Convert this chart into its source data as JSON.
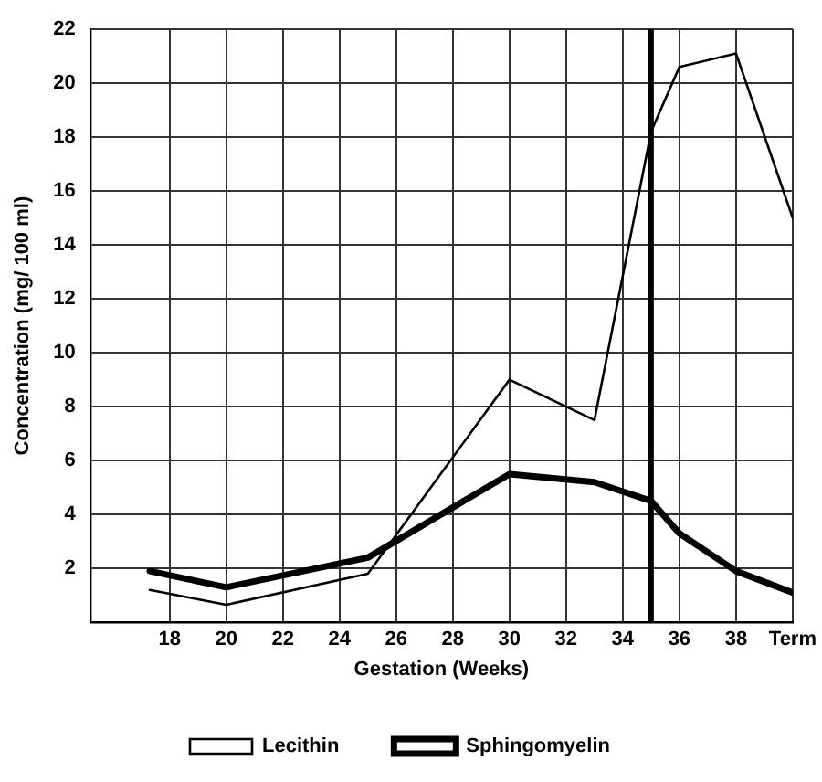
{
  "chart_data": {
    "type": "line",
    "xlabel": "Gestation (Weeks)",
    "ylabel": "Concentration (mg/ 100 ml)",
    "series": [
      {
        "name": "Lecithin",
        "color": "#000000",
        "x": [
          17.3,
          20,
          25,
          30,
          33,
          35,
          36,
          38,
          40
        ],
        "values": [
          1.2,
          0.65,
          1.8,
          9,
          7.5,
          18.2,
          20.6,
          21.1,
          15
        ]
      },
      {
        "name": "Sphingomyelin",
        "color": "#000000",
        "x": [
          17.3,
          20,
          25,
          30,
          33,
          35,
          36,
          38,
          40
        ],
        "values": [
          1.9,
          1.3,
          2.4,
          5.5,
          5.2,
          4.5,
          3.3,
          1.9,
          1.1
        ]
      }
    ],
    "xlim": [
      15.2,
      40
    ],
    "xticks": [
      18,
      20,
      22,
      24,
      26,
      28,
      30,
      32,
      34,
      36,
      38,
      {
        "value": 40,
        "label": "Term"
      }
    ],
    "ylim": [
      0,
      22
    ],
    "yticks": [
      {
        "value": 0,
        "label": null
      },
      2,
      4,
      6,
      8,
      10,
      12,
      14,
      16,
      18,
      20,
      22
    ],
    "ref_lines": [
      {
        "axis": "x",
        "value": 35,
        "color": "#000000"
      }
    ],
    "grid": true,
    "legend": "bottom",
    "marker": "none",
    "line_style": "solid"
  }
}
